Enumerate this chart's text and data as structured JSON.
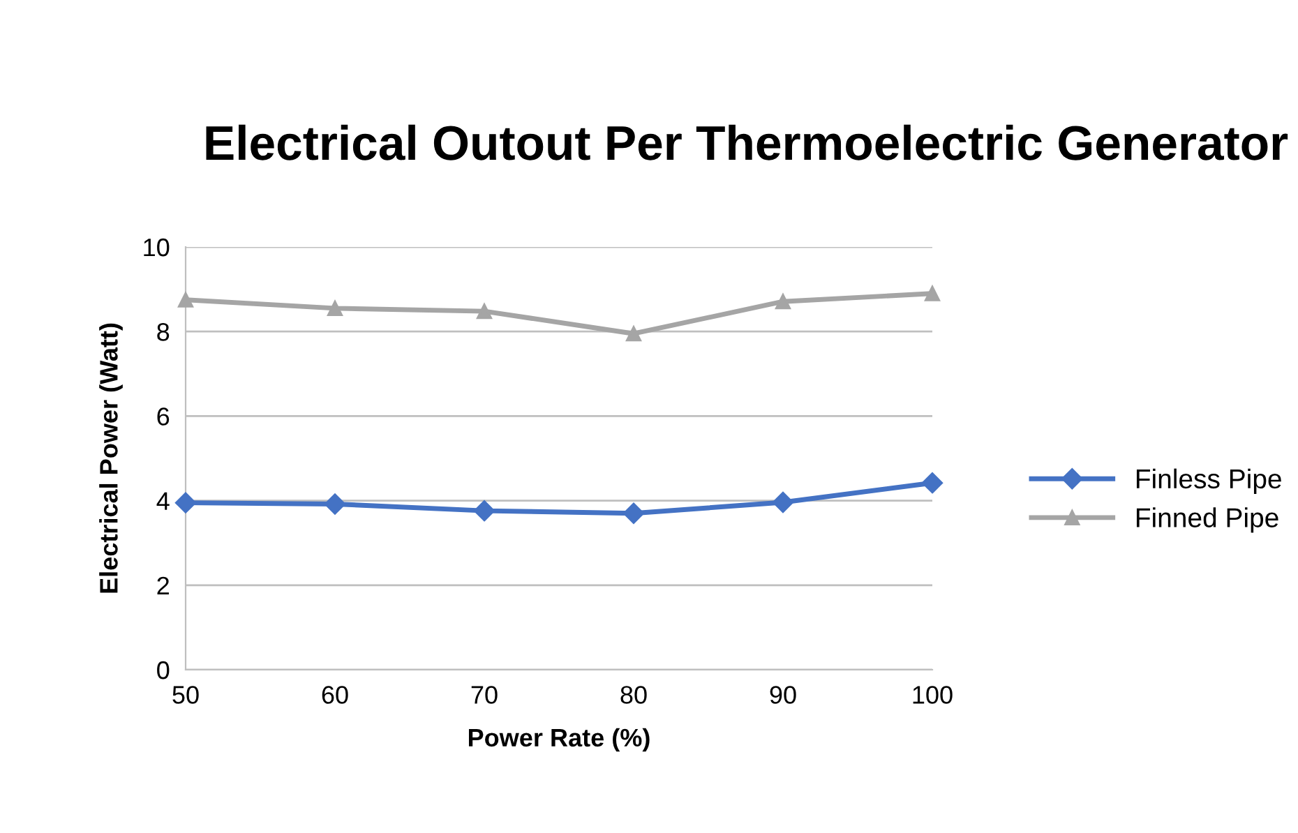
{
  "chart_data": {
    "type": "line",
    "title": "Electrical Outout Per Thermoelectric Generator",
    "xlabel": "Power Rate (%)",
    "ylabel": "Electrical Power (Watt)",
    "x": [
      50,
      60,
      70,
      80,
      90,
      100
    ],
    "series": [
      {
        "name": "Finless Pipe",
        "color": "#4472c4",
        "marker": "diamond",
        "values": [
          3.95,
          3.92,
          3.76,
          3.7,
          3.96,
          4.42
        ]
      },
      {
        "name": "Finned Pipe",
        "color": "#a5a5a5",
        "marker": "triangle",
        "values": [
          8.75,
          8.55,
          8.48,
          7.95,
          8.71,
          8.9
        ]
      }
    ],
    "xlim": [
      50,
      100
    ],
    "xticks": [
      50,
      60,
      70,
      80,
      90,
      100
    ],
    "ylim": [
      0,
      10
    ],
    "yticks": [
      0,
      2,
      4,
      6,
      8,
      10
    ],
    "grid": "y",
    "legend": "right",
    "line_style": "solid"
  }
}
